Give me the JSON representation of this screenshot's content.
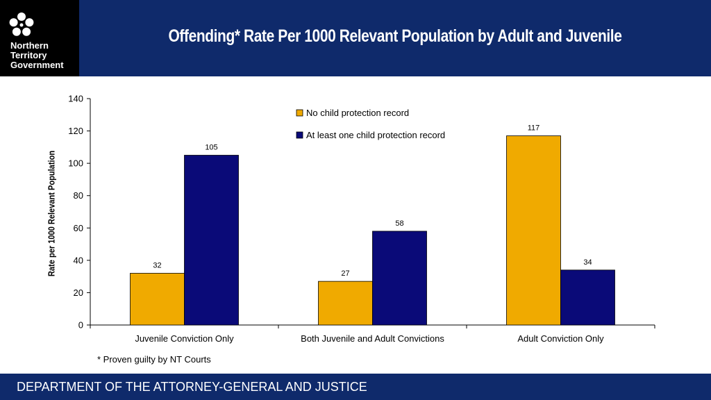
{
  "header": {
    "logo_lines": [
      "Northern",
      "Territory",
      "Government"
    ],
    "title": "Offending* Rate Per 1000 Relevant Population by Adult and Juvenile",
    "background": "#0f2a6b"
  },
  "footnote": "* Proven guilty by NT Courts",
  "footer": {
    "text": "DEPARTMENT OF THE ATTORNEY-GENERAL AND JUSTICE"
  },
  "chart_data": {
    "type": "bar",
    "title": "Offending* Rate Per 1000 Relevant Population by Adult and Juvenile",
    "xlabel": "",
    "ylabel": "Rate per 1000 Relevant Population",
    "ylim": [
      0,
      140
    ],
    "yticks": [
      0,
      20,
      40,
      60,
      80,
      100,
      120,
      140
    ],
    "grid": false,
    "legend": "top-center",
    "categories": [
      "Juvenile Conviction Only",
      "Both Juvenile and Adult Convictions",
      "Adult Conviction Only"
    ],
    "series": [
      {
        "name": "No child protection record",
        "values": [
          32,
          27,
          117
        ],
        "color": "#f0aa00"
      },
      {
        "name": "At least one child protection record",
        "values": [
          105,
          58,
          34
        ],
        "color": "#0a0a78"
      }
    ]
  }
}
